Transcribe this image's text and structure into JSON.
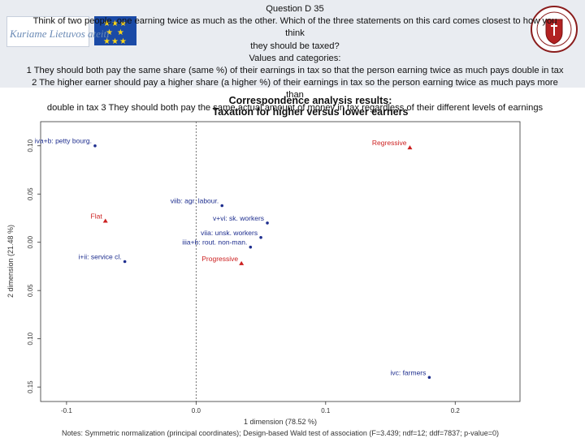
{
  "header": {
    "question": "Question D 35",
    "prompt_line1": "Think of two people, one earning twice as much as the other. Which of the three statements on this card comes closest to how you think",
    "prompt_line2": "they should be taxed?",
    "values_heading": "Values and categories:",
    "values_line1": "1 They should both pay the same share (same %) of their earnings in tax so that the person earning twice as much pays double in tax",
    "values_line2": "2 The higher earner should pay a higher share (a higher %) of their earnings in tax so the person earning twice as much pays more than",
    "values_line3": "double in tax 3 They should both pay the same actual amount of money in tax regardless of their different levels of earnings",
    "logo_caption": "Kuriame Lietuvos ateitį"
  },
  "colors": {
    "category": "#cc1f1f",
    "class": "#1f2f8f",
    "header_bg": "#e9ecf1"
  },
  "chart_data": {
    "type": "scatter",
    "title_line1": "Correspondence analysis results:",
    "title_line2": "Taxation for higher versus lower earners",
    "xlabel": "1 dimension (78.52 %)",
    "ylabel": "2 dimension (21.48 %)",
    "xlim": [
      -0.12,
      0.25
    ],
    "ylim": [
      -0.165,
      0.125
    ],
    "x_ticks": [
      -0.1,
      0.0,
      0.1,
      0.2
    ],
    "x_tick_labels": [
      "-0.1",
      "0.0",
      "0.1",
      "0.2"
    ],
    "y_ticks": [
      0.1,
      0.05,
      0.0,
      -0.05,
      -0.1,
      -0.15
    ],
    "y_tick_labels": [
      "0.10",
      "0.05",
      "0.00",
      "0.05",
      "0.10",
      "0.15"
    ],
    "reference_lines": {
      "x": 0,
      "y": 0
    },
    "grid": false,
    "series": [
      {
        "kind": "category",
        "points": [
          {
            "label": "Regressive",
            "x": 0.165,
            "y": 0.098
          },
          {
            "label": "Flat",
            "x": -0.07,
            "y": 0.022
          },
          {
            "label": "Progressive",
            "x": 0.035,
            "y": -0.022
          }
        ]
      },
      {
        "kind": "class",
        "points": [
          {
            "label": "iva+b: petty bourg.",
            "x": -0.078,
            "y": 0.1
          },
          {
            "label": "viib: agr. labour.",
            "x": 0.02,
            "y": 0.038
          },
          {
            "label": "v+vi: sk. workers",
            "x": 0.055,
            "y": 0.02
          },
          {
            "label": "viia: unsk. workers",
            "x": 0.05,
            "y": 0.005
          },
          {
            "label": "i+ii: service cl.",
            "x": -0.055,
            "y": -0.02
          },
          {
            "label": "iiia+b: rout. non-man.",
            "x": 0.042,
            "y": -0.005
          },
          {
            "label": "ivc: farmers",
            "x": 0.18,
            "y": -0.14
          }
        ]
      }
    ],
    "note": "Notes: Symmetric normalization (principal coordinates); Design-based Wald test of association (F=3.439; ndf=12; ddf=7837; p-value=0)"
  }
}
